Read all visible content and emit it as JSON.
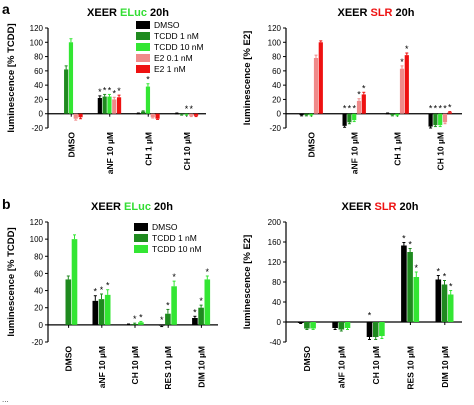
{
  "colors": {
    "dmso": "#000000",
    "tcdd1": "#1f8a1f",
    "tcdd10": "#33e633",
    "e2_01": "#f08a8a",
    "e2_1": "#ee1111",
    "eluc": "#33dd33",
    "slr": "#ee1111",
    "axis": "#000000"
  },
  "panels": [
    {
      "letter": "a"
    },
    {
      "letter": "b"
    }
  ],
  "footer_text": "...",
  "chart_data": [
    {
      "type": "bar",
      "title": {
        "prefix": "XEER ",
        "highlight": "ELuc",
        "highlight_color": "#33dd33",
        "suffix": " 20h"
      },
      "ylabel": "luminescence [% TCDD]",
      "ylim": [
        -20,
        120
      ],
      "yticks": [
        -20,
        0,
        20,
        40,
        60,
        80,
        100,
        120
      ],
      "categories": [
        "DMSO",
        "aNF 10 µM",
        "CH 1 µM",
        "CH 10 µM"
      ],
      "legend": {
        "position": "top-right",
        "entries": [
          "DMSO",
          "TCDD 1 nM",
          "TCDD 10 nM",
          "E2 0.1 nM",
          "E2 1 nM"
        ]
      },
      "series": [
        {
          "name": "DMSO",
          "color": "#000000",
          "values": [
            null,
            22,
            0,
            0
          ],
          "errors": [
            null,
            3,
            1,
            1
          ],
          "stars": [
            false,
            true,
            false,
            false
          ]
        },
        {
          "name": "TCDD 1 nM",
          "color": "#1f8a1f",
          "values": [
            62,
            24,
            3,
            -1
          ],
          "errors": [
            5,
            3,
            1,
            1
          ],
          "stars": [
            false,
            true,
            false,
            false
          ]
        },
        {
          "name": "TCDD 10 nM",
          "color": "#33e633",
          "values": [
            100,
            24,
            38,
            -1
          ],
          "errors": [
            5,
            3,
            4,
            1
          ],
          "stars": [
            false,
            true,
            true,
            true
          ]
        },
        {
          "name": "E2 0.1 nM",
          "color": "#f08a8a",
          "values": [
            -7,
            20,
            -5,
            -3
          ],
          "errors": [
            2,
            3,
            1,
            1
          ],
          "stars": [
            false,
            true,
            false,
            true
          ]
        },
        {
          "name": "E2 1 nM",
          "color": "#ee1111",
          "values": [
            -5,
            23,
            -7,
            -3
          ],
          "errors": [
            2,
            3,
            1,
            1
          ],
          "stars": [
            false,
            true,
            false,
            false
          ]
        }
      ]
    },
    {
      "type": "bar",
      "title": {
        "prefix": "XEER ",
        "highlight": "SLR",
        "highlight_color": "#ee1111",
        "suffix": " 20h"
      },
      "ylabel": "luminescence [% E2]",
      "ylim": [
        -20,
        120
      ],
      "yticks": [
        -20,
        0,
        20,
        40,
        60,
        80,
        100,
        120
      ],
      "categories": [
        "DMSO",
        "aNF 10 µM",
        "CH 1 µM",
        "CH 10 µM"
      ],
      "series": [
        {
          "name": "DMSO",
          "color": "#000000",
          "values": [
            -2,
            -17,
            0,
            -18
          ],
          "errors": [
            1,
            2,
            1,
            2
          ],
          "stars": [
            false,
            true,
            false,
            true
          ]
        },
        {
          "name": "TCDD 1 nM",
          "color": "#1f8a1f",
          "values": [
            -2,
            -12,
            -2,
            -16
          ],
          "errors": [
            1,
            2,
            1,
            2
          ],
          "stars": [
            false,
            true,
            false,
            true
          ]
        },
        {
          "name": "TCDD 10 nM",
          "color": "#33e633",
          "values": [
            -2,
            -9,
            -2,
            -16
          ],
          "errors": [
            1,
            2,
            1,
            2
          ],
          "stars": [
            false,
            true,
            false,
            true
          ]
        },
        {
          "name": "E2 0.1 nM",
          "color": "#f08a8a",
          "values": [
            78,
            18,
            63,
            -12
          ],
          "errors": [
            4,
            3,
            4,
            2
          ],
          "stars": [
            false,
            true,
            true,
            true
          ]
        },
        {
          "name": "E2 1 nM",
          "color": "#ee1111",
          "values": [
            100,
            27,
            82,
            2
          ],
          "errors": [
            2,
            3,
            3,
            1
          ],
          "stars": [
            false,
            true,
            true,
            true
          ]
        }
      ]
    },
    {
      "type": "bar",
      "title": {
        "prefix": "XEER ",
        "highlight": "ELuc",
        "highlight_color": "#33dd33",
        "suffix": " 20h"
      },
      "ylabel": "luminescence [% TCDD]",
      "ylim": [
        -20,
        120
      ],
      "yticks": [
        -20,
        0,
        20,
        40,
        60,
        80,
        100,
        120
      ],
      "categories": [
        "DMSO",
        "aNF 10 µM",
        "CH 10 µM",
        "RES 10 µM",
        "DIM 10 µM"
      ],
      "legend": {
        "position": "top-right",
        "entries": [
          "DMSO",
          "TCDD 1 nM",
          "TCDD 10 nM"
        ]
      },
      "series": [
        {
          "name": "DMSO",
          "color": "#000000",
          "values": [
            null,
            28,
            0,
            -1,
            8
          ],
          "errors": [
            null,
            6,
            1,
            1,
            2
          ],
          "stars": [
            false,
            true,
            false,
            true,
            true
          ]
        },
        {
          "name": "TCDD 1 nM",
          "color": "#1f8a1f",
          "values": [
            53,
            30,
            1,
            13,
            20
          ],
          "errors": [
            4,
            6,
            1,
            5,
            3
          ],
          "stars": [
            false,
            true,
            true,
            true,
            true
          ]
        },
        {
          "name": "TCDD 10 nM",
          "color": "#33e633",
          "values": [
            100,
            35,
            3,
            45,
            53
          ],
          "errors": [
            5,
            6,
            1,
            6,
            4
          ],
          "stars": [
            false,
            true,
            true,
            true,
            true
          ]
        }
      ]
    },
    {
      "type": "bar",
      "title": {
        "prefix": "XEER ",
        "highlight": "SLR",
        "highlight_color": "#ee1111",
        "suffix": " 20h"
      },
      "ylabel": "luminescence [% E2]",
      "ylim": [
        -40,
        200
      ],
      "yticks": [
        -40,
        0,
        40,
        80,
        120,
        160,
        200
      ],
      "categories": [
        "DMSO",
        "aNF 10 µM",
        "CH 10 µM",
        "RES 10 µM",
        "DIM 10 µM"
      ],
      "series": [
        {
          "name": "DMSO",
          "color": "#000000",
          "values": [
            -2,
            -12,
            -30,
            153,
            85
          ],
          "errors": [
            1,
            3,
            5,
            6,
            8
          ],
          "stars": [
            false,
            false,
            true,
            true,
            true
          ]
        },
        {
          "name": "TCDD 1 nM",
          "color": "#1f8a1f",
          "values": [
            -13,
            -15,
            -30,
            140,
            75
          ],
          "errors": [
            2,
            3,
            5,
            7,
            8
          ],
          "stars": [
            false,
            false,
            false,
            true,
            true
          ]
        },
        {
          "name": "TCDD 10 nM",
          "color": "#33e633",
          "values": [
            -13,
            -12,
            -28,
            90,
            55
          ],
          "errors": [
            2,
            3,
            5,
            10,
            8
          ],
          "stars": [
            false,
            false,
            false,
            true,
            true
          ]
        }
      ]
    }
  ]
}
